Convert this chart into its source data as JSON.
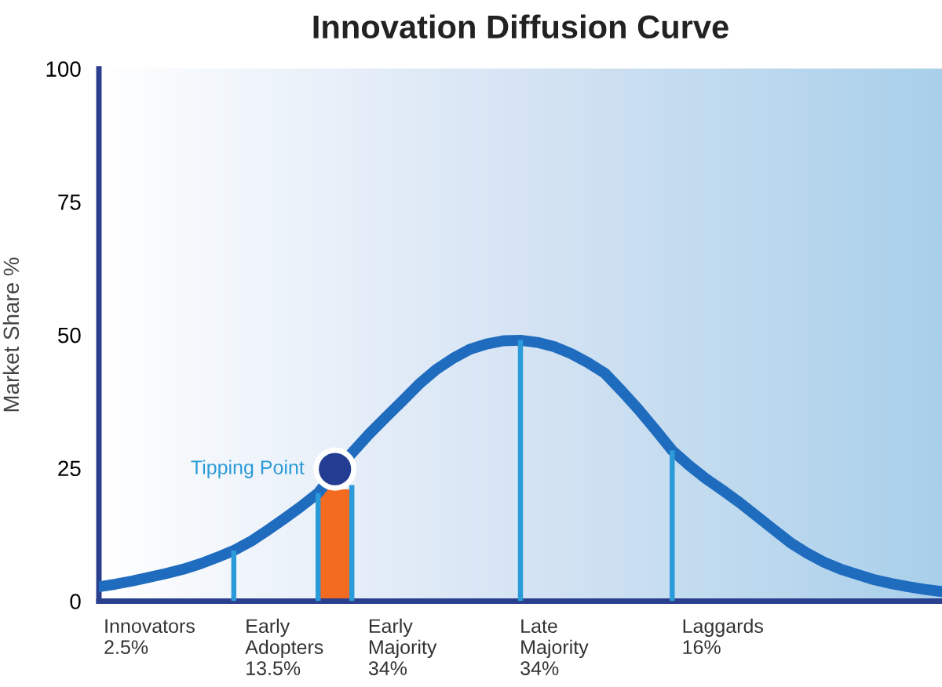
{
  "chart_data": {
    "type": "line",
    "title": "Innovation Diffusion Curve",
    "ylabel": "Market Share %",
    "ylim": [
      0,
      100
    ],
    "yticks": [
      0,
      25,
      50,
      75,
      100
    ],
    "categories": [
      null,
      null,
      null,
      "Innovators\n2.5%",
      null,
      null,
      null,
      null,
      null,
      null,
      null,
      "Early\nAdopters\n13.5%",
      null,
      null,
      null,
      null,
      null,
      null,
      "Early\nMajority\n34%",
      null,
      null,
      null,
      null,
      null,
      null,
      null,
      null,
      "Late\nMajority\n34%",
      null,
      null,
      null,
      null,
      null,
      null,
      null,
      null,
      null,
      "Laggards\n16%",
      null,
      null,
      null,
      null,
      null,
      null,
      null,
      null,
      null,
      null,
      null,
      null,
      null
    ],
    "grid": false,
    "legend": false,
    "marker": "none",
    "line_style": "solid",
    "series": [
      {
        "color": "#1f6cbf",
        "values": [
          2.7,
          3.2,
          3.8,
          4.5,
          5.2,
          6.0,
          7.0,
          8.2,
          9.5,
          11.2,
          13.3,
          15.5,
          17.8,
          20.3,
          24.3,
          27.8,
          31.3,
          34.5,
          37.6,
          40.8,
          43.5,
          45.6,
          47.3,
          48.3,
          48.9,
          49,
          48.6,
          47.8,
          46.5,
          44.8,
          42.8,
          39.5,
          36,
          32.2,
          28.3,
          25.5,
          23,
          20.8,
          18.5,
          16,
          13.5,
          11,
          9,
          7.3,
          6,
          5,
          4,
          3.3,
          2.7,
          2.2,
          1.8
        ]
      },
      {
        "type": "bar",
        "color": "#f26b21",
        "values": [
          null,
          null,
          null,
          null,
          null,
          null,
          null,
          null,
          null,
          null,
          null,
          null,
          null,
          null,
          21,
          null,
          null,
          null,
          null,
          null,
          null,
          null,
          null,
          null,
          null,
          null,
          null,
          null,
          null,
          null,
          null,
          null,
          null,
          null,
          null,
          null,
          null,
          null,
          null,
          null,
          null,
          null,
          null,
          null,
          null,
          null,
          null,
          null,
          null,
          null,
          null
        ]
      },
      {
        "type": "bar",
        "color": "#2a9ad8",
        "values": [
          null,
          null,
          null,
          null,
          null,
          null,
          null,
          null,
          9.5,
          null,
          null,
          null,
          null,
          20.3,
          null,
          21.8,
          null,
          null,
          null,
          null,
          null,
          null,
          null,
          null,
          null,
          49,
          null,
          null,
          null,
          null,
          null,
          null,
          null,
          null,
          28.3,
          null,
          null,
          null,
          null,
          null,
          null,
          null,
          null,
          null,
          null,
          null,
          null,
          null,
          null,
          null,
          null
        ]
      },
      {
        "type": "scatter",
        "marker": "circle",
        "color": "#223d91",
        "values": [
          null,
          null,
          null,
          null,
          null,
          null,
          null,
          null,
          null,
          null,
          null,
          null,
          null,
          null,
          24.8,
          null,
          null,
          null,
          null,
          null,
          null,
          null,
          null,
          null,
          null,
          null,
          null,
          null,
          null,
          null,
          null,
          null,
          null,
          null,
          null,
          null,
          null,
          null,
          null,
          null,
          null,
          null,
          null,
          null,
          null,
          null,
          null,
          null,
          null,
          null,
          null
        ]
      }
    ],
    "annotations": [
      "Tipping Point"
    ]
  }
}
